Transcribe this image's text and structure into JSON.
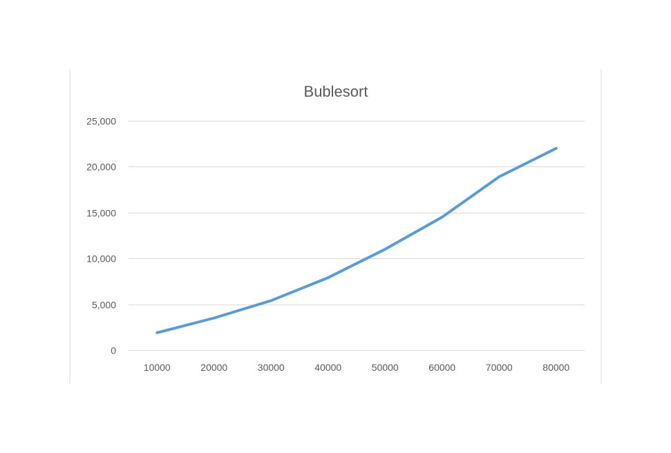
{
  "chart_data": {
    "type": "line",
    "title": "Bublesort",
    "xlabel": "",
    "ylabel": "",
    "categories": [
      "10000",
      "20000",
      "30000",
      "40000",
      "50000",
      "60000",
      "70000",
      "80000"
    ],
    "series": [
      {
        "values": [
          1900,
          3500,
          5400,
          7900,
          11000,
          14500,
          18900,
          22000
        ],
        "color": "#5b9bd5"
      }
    ],
    "ylim": [
      0,
      25000
    ],
    "yticks": [
      0,
      5000,
      10000,
      15000,
      20000,
      25000
    ],
    "ytick_labels": [
      "0",
      "5,000",
      "10,000",
      "15,000",
      "20,000",
      "25,000"
    ],
    "grid": true,
    "legend": "none"
  }
}
